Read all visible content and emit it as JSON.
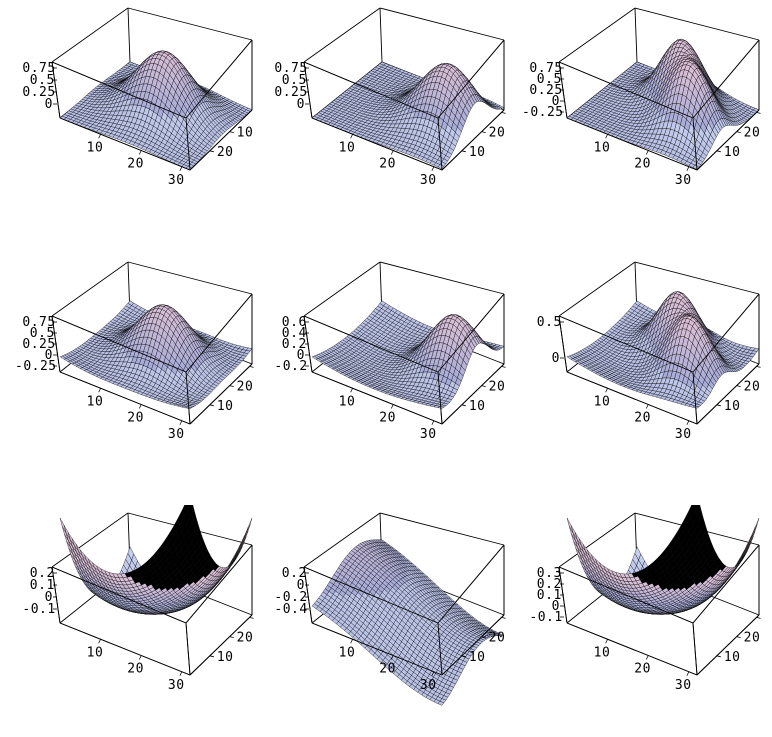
{
  "chart_data": [
    {
      "type": "surface3d",
      "x_ticks": [
        "10",
        "20",
        "30"
      ],
      "y_ticks": [
        "10",
        "20"
      ],
      "z_ticks": [
        "0.75",
        "0.5",
        "0.25",
        "0"
      ],
      "surface": {
        "kind": "bump",
        "centers": [
          [
            17,
            17
          ]
        ],
        "sigma": 6.5,
        "bowl": 0
      }
    },
    {
      "type": "surface3d",
      "x_ticks": [
        "10",
        "20",
        "30"
      ],
      "y_ticks": [
        "30",
        "20",
        "10"
      ],
      "z_ticks": [
        "0.75",
        "0.5",
        "0.25",
        "0"
      ],
      "surface": {
        "kind": "bump",
        "centers": [
          [
            25,
            17
          ]
        ],
        "sigma": 6.5,
        "bowl": 0
      }
    },
    {
      "type": "surface3d",
      "x_ticks": [
        "10",
        "20",
        "30"
      ],
      "y_ticks": [
        "30",
        "20",
        "10"
      ],
      "z_ticks": [
        "0.75",
        "0.5",
        "0.25",
        "0",
        "-0.25"
      ],
      "surface": {
        "kind": "bump",
        "centers": [
          [
            24,
            13
          ],
          [
            17,
            22
          ]
        ],
        "sigma": 5,
        "bowl": 0
      }
    },
    {
      "type": "surface3d",
      "x_ticks": [
        "10",
        "20",
        "30"
      ],
      "y_ticks": [
        "30",
        "20",
        "10"
      ],
      "z_ticks": [
        "0.75",
        "0.5",
        "0.25",
        "0",
        "-0.25"
      ],
      "surface": {
        "kind": "bump",
        "centers": [
          [
            17,
            17
          ]
        ],
        "sigma": 6.5,
        "bowl": -0.35
      }
    },
    {
      "type": "surface3d",
      "x_ticks": [
        "10",
        "20",
        "30"
      ],
      "y_ticks": [
        "30",
        "20",
        "10"
      ],
      "z_ticks": [
        "0.6",
        "0.4",
        "0.2",
        "0",
        "-0.2"
      ],
      "surface": {
        "kind": "bump",
        "centers": [
          [
            26,
            18
          ]
        ],
        "sigma": 6,
        "bowl": -0.35
      }
    },
    {
      "type": "surface3d",
      "x_ticks": [
        "10",
        "20",
        "30"
      ],
      "y_ticks": [
        "30",
        "20",
        "10"
      ],
      "z_ticks": [
        "0.5",
        "0"
      ],
      "surface": {
        "kind": "bump",
        "centers": [
          [
            24,
            13
          ],
          [
            16,
            22
          ]
        ],
        "sigma": 5,
        "bowl": -0.35
      }
    },
    {
      "type": "surface3d",
      "x_ticks": [
        "10",
        "20",
        "30"
      ],
      "y_ticks": [
        "30",
        "20",
        "10"
      ],
      "z_ticks": [
        "0.2",
        "0.1",
        "0",
        "-0.1"
      ],
      "surface": {
        "kind": "bowl",
        "centers": [],
        "sigma": 6,
        "bowl": 1
      }
    },
    {
      "type": "surface3d",
      "x_ticks": [
        "10",
        "20",
        "30"
      ],
      "y_ticks": [
        "30",
        "20",
        "10"
      ],
      "z_ticks": [
        "0.2",
        "0",
        "-0.2",
        "-0.4"
      ],
      "surface": {
        "kind": "wave",
        "centers": [],
        "sigma": 6,
        "bowl": 0.6
      }
    },
    {
      "type": "surface3d",
      "x_ticks": [
        "10",
        "20",
        "30"
      ],
      "y_ticks": [
        "30",
        "20",
        "10"
      ],
      "z_ticks": [
        "0.3",
        "0.2",
        "0.1",
        "0",
        "-0.1"
      ],
      "surface": {
        "kind": "bowl",
        "centers": [],
        "sigma": 6,
        "bowl": 1
      }
    }
  ],
  "style": {
    "surface_light": "#c8d2f0",
    "surface_mid": "#a6acd8",
    "surface_pink": "#d9bfd6",
    "surface_dark": "#2a2f5a",
    "grid_line": "#000000",
    "box_line": "#000000"
  }
}
